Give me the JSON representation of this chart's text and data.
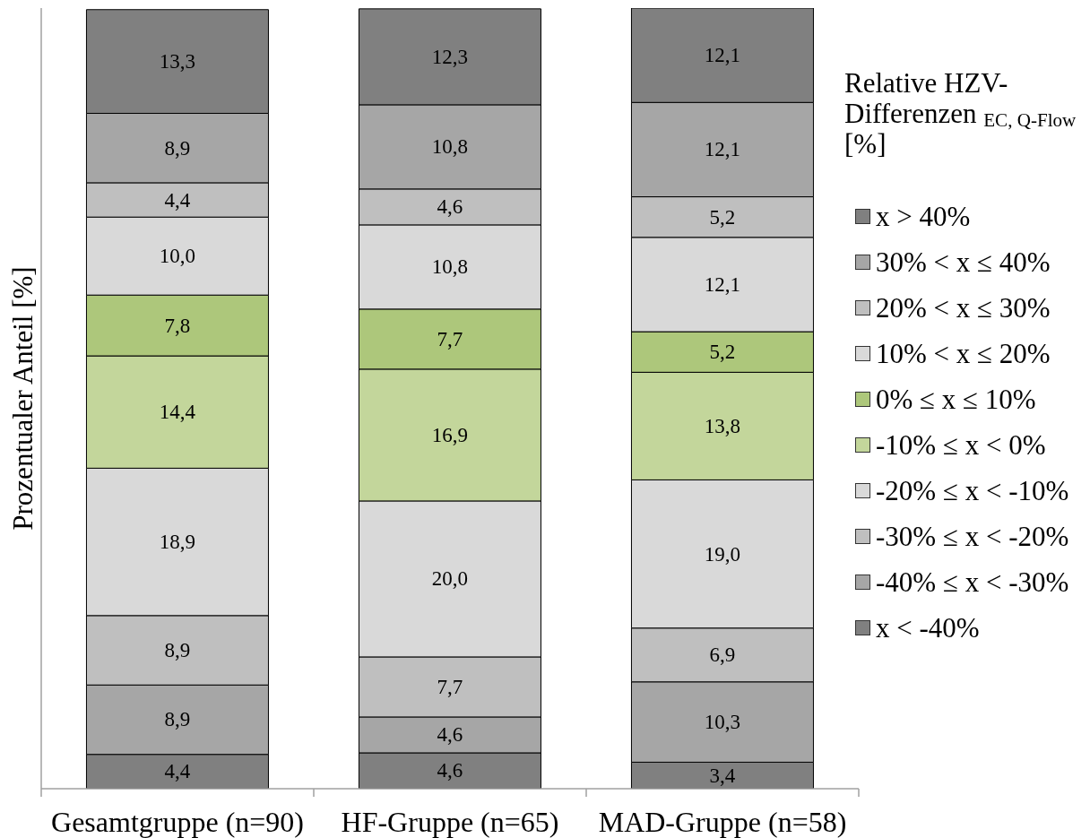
{
  "chart_data": {
    "type": "bar",
    "stacked": true,
    "ylabel": "Prozentualer Anteil [%]",
    "legend_title": "Relative HZV-Differenzen $_{EC, Q-Flow}$ [%]",
    "legend": "right",
    "tick_labels": "x",
    "categories": [
      "Gesamtgruppe (n=90)",
      "HF-Gruppe (n=65)",
      "MAD-Gruppe (n=58)"
    ],
    "series": [
      {
        "name": "x < -40%",
        "color": "#808080",
        "values": [
          4.4,
          4.6,
          3.4
        ],
        "value_labels": [
          "4,4",
          "4,6",
          "3,4"
        ]
      },
      {
        "name": "-40% ≤ x < -30%",
        "color": "#a6a6a6",
        "values": [
          8.9,
          4.6,
          10.3
        ],
        "value_labels": [
          "8,9",
          "4,6",
          "10,3"
        ]
      },
      {
        "name": "-30% ≤ x < -20%",
        "color": "#bfbfbf",
        "values": [
          8.9,
          7.7,
          6.9
        ],
        "value_labels": [
          "8,9",
          "7,7",
          "6,9"
        ]
      },
      {
        "name": "-20% ≤ x < -10%",
        "color": "#d9d9d9",
        "values": [
          18.9,
          20.0,
          19.0
        ],
        "value_labels": [
          "18,9",
          "20,0",
          "19,0"
        ]
      },
      {
        "name": "-10% ≤ x < 0%",
        "color": "#c3d69b",
        "values": [
          14.4,
          16.9,
          13.8
        ],
        "value_labels": [
          "14,4",
          "16,9",
          "13,8"
        ]
      },
      {
        "name": "0% ≤ x ≤ 10%",
        "color": "#adc77b",
        "values": [
          7.8,
          7.7,
          5.2
        ],
        "value_labels": [
          "7,8",
          "7,7",
          "5,2"
        ]
      },
      {
        "name": "10% < x ≤ 20%",
        "color": "#d9d9d9",
        "values": [
          10.0,
          10.8,
          12.1
        ],
        "value_labels": [
          "10,0",
          "10,8",
          "12,1"
        ]
      },
      {
        "name": "20% < x ≤ 30%",
        "color": "#bfbfbf",
        "values": [
          4.4,
          4.6,
          5.2
        ],
        "value_labels": [
          "4,4",
          "4,6",
          "5,2"
        ]
      },
      {
        "name": "30% < x ≤ 40%",
        "color": "#a6a6a6",
        "values": [
          8.9,
          10.8,
          12.1
        ],
        "value_labels": [
          "8,9",
          "10,8",
          "12,1"
        ]
      },
      {
        "name": "x > 40%",
        "color": "#808080",
        "values": [
          13.3,
          12.3,
          12.1
        ],
        "value_labels": [
          "13,3",
          "12,3",
          "12,1"
        ]
      }
    ]
  }
}
